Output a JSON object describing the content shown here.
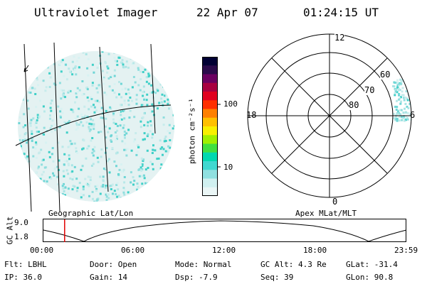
{
  "header": {
    "title": "Ultraviolet Imager",
    "date": "22 Apr 07",
    "time": "01:24:15 UT"
  },
  "left_panel": {
    "label": "Geographic Lat/Lon"
  },
  "right_panel": {
    "label": "Apex MLat/MLT",
    "mlt_labels": [
      "12",
      "18",
      "6",
      "0"
    ],
    "lat_labels": [
      "60",
      "70",
      "80"
    ]
  },
  "colorbar": {
    "unit_label": "photon cm⁻²s⁻¹",
    "ticks": [
      "100",
      "10"
    ],
    "colors": [
      "#000033",
      "#2a0a4a",
      "#6a0060",
      "#a80040",
      "#e00020",
      "#ff3000",
      "#ff8000",
      "#ffc000",
      "#f8f000",
      "#a0f000",
      "#40e040",
      "#00d8b0",
      "#40d8d0",
      "#90e0e0",
      "#d0f0f0",
      "#eaf6f6"
    ]
  },
  "timeline": {
    "ylabel": "GC Alt",
    "yticks": [
      "9.0",
      "1.8"
    ],
    "xticks": [
      "00:00",
      "06:00",
      "12:00",
      "18:00",
      "23:59"
    ],
    "marker_fraction": 0.0585
  },
  "info": {
    "flt": "Flt: LBHL",
    "ip": "IP: 36.0",
    "door": "Door: Open",
    "gain": "Gain: 14",
    "mode": "Mode: Normal",
    "dsp": "Dsp:   -7.9",
    "gcalt": "GC Alt: 4.3 Re",
    "seq": "Seq: 39",
    "glat": "GLat:  -31.4",
    "glon": "GLon:  90.8"
  }
}
